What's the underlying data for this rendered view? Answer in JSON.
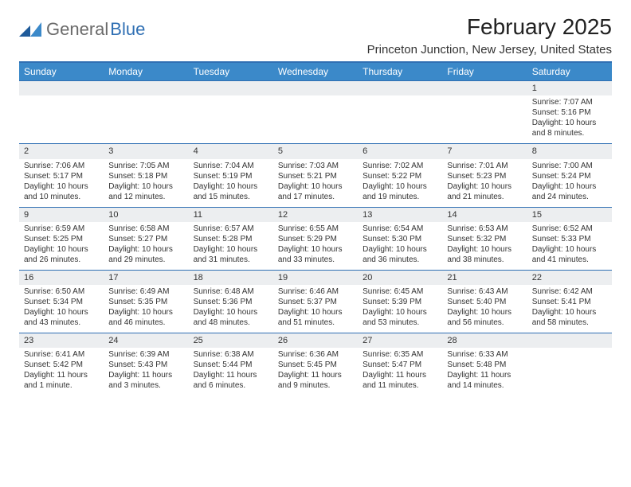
{
  "logo": {
    "text1": "General",
    "text2": "Blue"
  },
  "title": "February 2025",
  "location": "Princeton Junction, New Jersey, United States",
  "colors": {
    "header_bar": "#3b89c9",
    "divider": "#2f6fb3",
    "row_bg": "#eceef0",
    "text": "#333333",
    "logo_gray": "#6a6a6a",
    "logo_blue": "#2f6fb3"
  },
  "weekdays": [
    "Sunday",
    "Monday",
    "Tuesday",
    "Wednesday",
    "Thursday",
    "Friday",
    "Saturday"
  ],
  "weeks": [
    [
      null,
      null,
      null,
      null,
      null,
      null,
      {
        "n": "1",
        "sunrise": "Sunrise: 7:07 AM",
        "sunset": "Sunset: 5:16 PM",
        "d1": "Daylight: 10 hours",
        "d2": "and 8 minutes."
      }
    ],
    [
      {
        "n": "2",
        "sunrise": "Sunrise: 7:06 AM",
        "sunset": "Sunset: 5:17 PM",
        "d1": "Daylight: 10 hours",
        "d2": "and 10 minutes."
      },
      {
        "n": "3",
        "sunrise": "Sunrise: 7:05 AM",
        "sunset": "Sunset: 5:18 PM",
        "d1": "Daylight: 10 hours",
        "d2": "and 12 minutes."
      },
      {
        "n": "4",
        "sunrise": "Sunrise: 7:04 AM",
        "sunset": "Sunset: 5:19 PM",
        "d1": "Daylight: 10 hours",
        "d2": "and 15 minutes."
      },
      {
        "n": "5",
        "sunrise": "Sunrise: 7:03 AM",
        "sunset": "Sunset: 5:21 PM",
        "d1": "Daylight: 10 hours",
        "d2": "and 17 minutes."
      },
      {
        "n": "6",
        "sunrise": "Sunrise: 7:02 AM",
        "sunset": "Sunset: 5:22 PM",
        "d1": "Daylight: 10 hours",
        "d2": "and 19 minutes."
      },
      {
        "n": "7",
        "sunrise": "Sunrise: 7:01 AM",
        "sunset": "Sunset: 5:23 PM",
        "d1": "Daylight: 10 hours",
        "d2": "and 21 minutes."
      },
      {
        "n": "8",
        "sunrise": "Sunrise: 7:00 AM",
        "sunset": "Sunset: 5:24 PM",
        "d1": "Daylight: 10 hours",
        "d2": "and 24 minutes."
      }
    ],
    [
      {
        "n": "9",
        "sunrise": "Sunrise: 6:59 AM",
        "sunset": "Sunset: 5:25 PM",
        "d1": "Daylight: 10 hours",
        "d2": "and 26 minutes."
      },
      {
        "n": "10",
        "sunrise": "Sunrise: 6:58 AM",
        "sunset": "Sunset: 5:27 PM",
        "d1": "Daylight: 10 hours",
        "d2": "and 29 minutes."
      },
      {
        "n": "11",
        "sunrise": "Sunrise: 6:57 AM",
        "sunset": "Sunset: 5:28 PM",
        "d1": "Daylight: 10 hours",
        "d2": "and 31 minutes."
      },
      {
        "n": "12",
        "sunrise": "Sunrise: 6:55 AM",
        "sunset": "Sunset: 5:29 PM",
        "d1": "Daylight: 10 hours",
        "d2": "and 33 minutes."
      },
      {
        "n": "13",
        "sunrise": "Sunrise: 6:54 AM",
        "sunset": "Sunset: 5:30 PM",
        "d1": "Daylight: 10 hours",
        "d2": "and 36 minutes."
      },
      {
        "n": "14",
        "sunrise": "Sunrise: 6:53 AM",
        "sunset": "Sunset: 5:32 PM",
        "d1": "Daylight: 10 hours",
        "d2": "and 38 minutes."
      },
      {
        "n": "15",
        "sunrise": "Sunrise: 6:52 AM",
        "sunset": "Sunset: 5:33 PM",
        "d1": "Daylight: 10 hours",
        "d2": "and 41 minutes."
      }
    ],
    [
      {
        "n": "16",
        "sunrise": "Sunrise: 6:50 AM",
        "sunset": "Sunset: 5:34 PM",
        "d1": "Daylight: 10 hours",
        "d2": "and 43 minutes."
      },
      {
        "n": "17",
        "sunrise": "Sunrise: 6:49 AM",
        "sunset": "Sunset: 5:35 PM",
        "d1": "Daylight: 10 hours",
        "d2": "and 46 minutes."
      },
      {
        "n": "18",
        "sunrise": "Sunrise: 6:48 AM",
        "sunset": "Sunset: 5:36 PM",
        "d1": "Daylight: 10 hours",
        "d2": "and 48 minutes."
      },
      {
        "n": "19",
        "sunrise": "Sunrise: 6:46 AM",
        "sunset": "Sunset: 5:37 PM",
        "d1": "Daylight: 10 hours",
        "d2": "and 51 minutes."
      },
      {
        "n": "20",
        "sunrise": "Sunrise: 6:45 AM",
        "sunset": "Sunset: 5:39 PM",
        "d1": "Daylight: 10 hours",
        "d2": "and 53 minutes."
      },
      {
        "n": "21",
        "sunrise": "Sunrise: 6:43 AM",
        "sunset": "Sunset: 5:40 PM",
        "d1": "Daylight: 10 hours",
        "d2": "and 56 minutes."
      },
      {
        "n": "22",
        "sunrise": "Sunrise: 6:42 AM",
        "sunset": "Sunset: 5:41 PM",
        "d1": "Daylight: 10 hours",
        "d2": "and 58 minutes."
      }
    ],
    [
      {
        "n": "23",
        "sunrise": "Sunrise: 6:41 AM",
        "sunset": "Sunset: 5:42 PM",
        "d1": "Daylight: 11 hours",
        "d2": "and 1 minute."
      },
      {
        "n": "24",
        "sunrise": "Sunrise: 6:39 AM",
        "sunset": "Sunset: 5:43 PM",
        "d1": "Daylight: 11 hours",
        "d2": "and 3 minutes."
      },
      {
        "n": "25",
        "sunrise": "Sunrise: 6:38 AM",
        "sunset": "Sunset: 5:44 PM",
        "d1": "Daylight: 11 hours",
        "d2": "and 6 minutes."
      },
      {
        "n": "26",
        "sunrise": "Sunrise: 6:36 AM",
        "sunset": "Sunset: 5:45 PM",
        "d1": "Daylight: 11 hours",
        "d2": "and 9 minutes."
      },
      {
        "n": "27",
        "sunrise": "Sunrise: 6:35 AM",
        "sunset": "Sunset: 5:47 PM",
        "d1": "Daylight: 11 hours",
        "d2": "and 11 minutes."
      },
      {
        "n": "28",
        "sunrise": "Sunrise: 6:33 AM",
        "sunset": "Sunset: 5:48 PM",
        "d1": "Daylight: 11 hours",
        "d2": "and 14 minutes."
      },
      null
    ]
  ]
}
